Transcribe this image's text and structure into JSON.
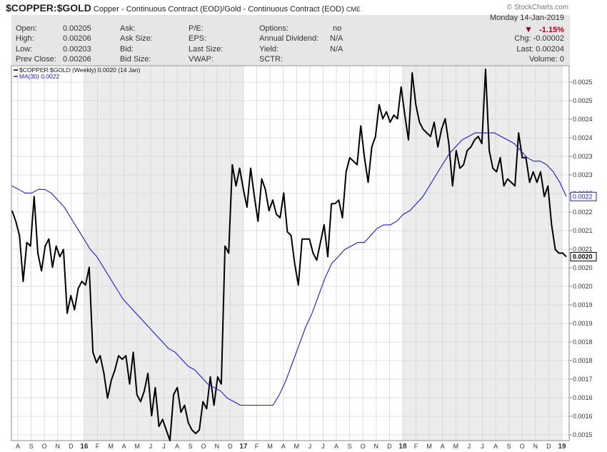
{
  "header": {
    "symbol": "$COPPER:$GOLD",
    "description": "Copper - Continuous Contract (EOD)/Gold - Continuous Contract (EOD)",
    "exchange": "CME",
    "watermark": "© StockCharts.com"
  },
  "quote": {
    "date": "Monday 14-Jan-2019",
    "open_label": "Open:",
    "open_value": "0.00205",
    "high_label": "High:",
    "high_value": "0.00206",
    "low_label": "Low:",
    "low_value": "0.00203",
    "prev_close_label": "Prev Close:",
    "prev_close_value": "0.00206",
    "ask_label": "Ask:",
    "ask_size_label": "Ask Size:",
    "bid_label": "Bid:",
    "bid_size_label": "Bid Size:",
    "pe_label": "P/E:",
    "eps_label": "EPS:",
    "last_size_label": "Last Size:",
    "vwap_label": "VWAP:",
    "options_label": "Options:",
    "options_value": "no",
    "dividend_label": "Annual Dividend:",
    "dividend_value": "N/A",
    "yield_label": "Yield:",
    "yield_value": "N/A",
    "sctr_label": "SCTR:",
    "change_pct": "-1.15%",
    "chg_text": "Chg: -0.00002",
    "last_text": "Last: 0.00204",
    "volume_text": "Volume: 0"
  },
  "chart_data": {
    "type": "line",
    "title": "$COPPER:$GOLD",
    "x_ticks": [
      "A",
      "S",
      "O",
      "N",
      "D",
      "16",
      "F",
      "M",
      "A",
      "M",
      "J",
      "J",
      "A",
      "S",
      "O",
      "N",
      "D",
      "17",
      "F",
      "M",
      "A",
      "M",
      "J",
      "J",
      "A",
      "S",
      "O",
      "N",
      "D",
      "18",
      "F",
      "M",
      "A",
      "M",
      "J",
      "J",
      "A",
      "S",
      "O",
      "N",
      "D",
      "19"
    ],
    "y_ticks": [
      "0.0015",
      "0.0016",
      "0.0016",
      "0.0017",
      "0.0018",
      "0.0018",
      "0.0019",
      "0.0019",
      "0.0020",
      "0.0020",
      "0.0021",
      "0.0021",
      "0.0022",
      "0.0022",
      "0.0023",
      "0.0023",
      "0.0024",
      "0.0024",
      "0.0025",
      "0.0025"
    ],
    "ylim": [
      0.0015,
      0.00256
    ],
    "grid": true,
    "legend_position": "top-left",
    "series": [
      {
        "name": "$COPPER:$GOLD (Weekly) 0.0020 (14 Jan)",
        "color": "#000000",
        "values": [
          0.00215,
          0.00212,
          0.00208,
          0.00195,
          0.00206,
          0.00205,
          0.00219,
          0.00203,
          0.00198,
          0.00205,
          0.00207,
          0.00199,
          0.00205,
          0.00202,
          0.00204,
          0.00186,
          0.00191,
          0.00187,
          0.00193,
          0.00195,
          0.00194,
          0.00199,
          0.00175,
          0.00172,
          0.00174,
          0.00169,
          0.00162,
          0.00167,
          0.0017,
          0.00174,
          0.00173,
          0.00174,
          0.00166,
          0.00175,
          0.00163,
          0.00161,
          0.00164,
          0.00169,
          0.00157,
          0.00165,
          0.00154,
          0.00156,
          0.00153,
          0.0015,
          0.00163,
          0.00165,
          0.00158,
          0.0016,
          0.00155,
          0.00153,
          0.00152,
          0.00153,
          0.00161,
          0.00159,
          0.00168,
          0.0016,
          0.00168,
          0.00166,
          0.00205,
          0.00203,
          0.00228,
          0.00222,
          0.00227,
          0.00221,
          0.00216,
          0.00227,
          0.00219,
          0.00212,
          0.00224,
          0.00221,
          0.00215,
          0.00218,
          0.00214,
          0.00213,
          0.0022,
          0.00209,
          0.00208,
          0.002,
          0.00194,
          0.00207,
          0.00207,
          0.00207,
          0.00203,
          0.00201,
          0.00206,
          0.00211,
          0.00202,
          0.00217,
          0.00217,
          0.00218,
          0.00213,
          0.00226,
          0.0023,
          0.00229,
          0.00228,
          0.00239,
          0.0023,
          0.00223,
          0.00233,
          0.00236,
          0.00245,
          0.00241,
          0.00243,
          0.0024,
          0.00242,
          0.00241,
          0.0025,
          0.00242,
          0.00235,
          0.00254,
          0.00245,
          0.0024,
          0.00238,
          0.00237,
          0.00236,
          0.0024,
          0.00233,
          0.00238,
          0.00241,
          0.00234,
          0.00222,
          0.00232,
          0.00227,
          0.00228,
          0.00232,
          0.00233,
          0.00235,
          0.00236,
          0.00234,
          0.00255,
          0.00232,
          0.00227,
          0.00226,
          0.0023,
          0.00222,
          0.00224,
          0.00223,
          0.00222,
          0.00237,
          0.0023,
          0.0023,
          0.00223,
          0.00226,
          0.00223,
          0.00226,
          0.00219,
          0.00222,
          0.00211,
          0.00204,
          0.00203,
          0.00203,
          0.00202
        ]
      },
      {
        "name": "MA(30) 0.0022",
        "color": "#1c1cc9",
        "values": [
          0.00222,
          0.00221,
          0.0022,
          0.0022,
          0.00221,
          0.00221,
          0.0022,
          0.00218,
          0.00216,
          0.00213,
          0.0021,
          0.00207,
          0.00204,
          0.00202,
          0.00199,
          0.00196,
          0.00193,
          0.0019,
          0.00188,
          0.00186,
          0.00184,
          0.00182,
          0.0018,
          0.00178,
          0.00176,
          0.00175,
          0.00173,
          0.00171,
          0.0017,
          0.00168,
          0.00166,
          0.00165,
          0.00164,
          0.00162,
          0.00161,
          0.0016,
          0.0016,
          0.0016,
          0.0016,
          0.0016,
          0.0016,
          0.00163,
          0.00167,
          0.00172,
          0.00177,
          0.00182,
          0.00186,
          0.00191,
          0.00196,
          0.002,
          0.00202,
          0.00204,
          0.00205,
          0.00206,
          0.00206,
          0.00208,
          0.0021,
          0.00211,
          0.00211,
          0.00212,
          0.00214,
          0.00215,
          0.00217,
          0.00219,
          0.00222,
          0.00225,
          0.00228,
          0.00231,
          0.00233,
          0.00235,
          0.00236,
          0.00237,
          0.00237,
          0.00237,
          0.00237,
          0.00236,
          0.00235,
          0.00234,
          0.00232,
          0.0023,
          0.00229,
          0.00229,
          0.00228,
          0.00226,
          0.00223,
          0.00219
        ]
      }
    ]
  }
}
